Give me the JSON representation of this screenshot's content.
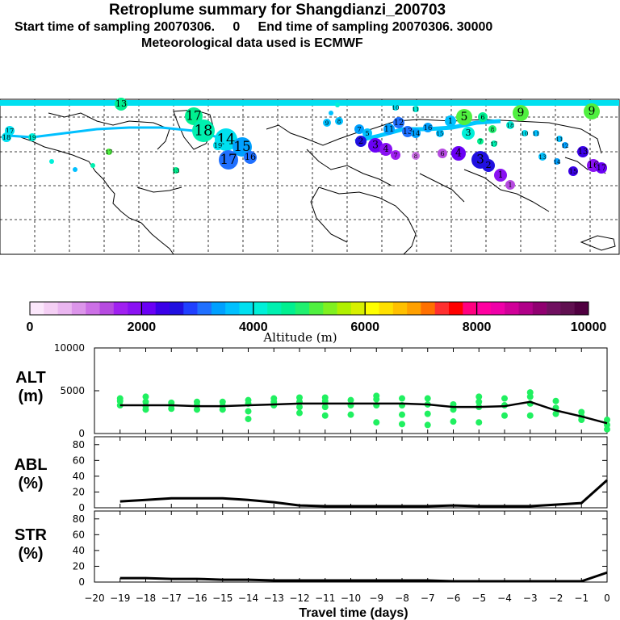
{
  "title": "Retroplume summary for Shangdianzi_200703",
  "subtitle_start": "Start time of sampling 20070306.     0",
  "subtitle_end": "End time of sampling 20070306. 30000",
  "subtitle_met": "Meteorological data used is ECMWF",
  "colorbar": {
    "label": "Altitude (m)",
    "ticks": [
      "0",
      "2000",
      "4000",
      "6000",
      "8000",
      "10000"
    ],
    "colors": [
      "#fbe7fb",
      "#f4cff4",
      "#eab6f0",
      "#dc95ea",
      "#cc70e6",
      "#b64be0",
      "#a020f0",
      "#8a12f2",
      "#6a00f5",
      "#3a00e8",
      "#2010e0",
      "#2040ff",
      "#2070ff",
      "#00a0ff",
      "#00c0ff",
      "#00e0f0",
      "#00f0d8",
      "#00f0b0",
      "#00f090",
      "#20f070",
      "#50f040",
      "#80f020",
      "#b0f000",
      "#d8f000",
      "#ffff00",
      "#ffe000",
      "#ffc000",
      "#ffa000",
      "#ff7000",
      "#ff3030",
      "#ff0000",
      "#ff0080",
      "#ff00a0",
      "#ef00a8",
      "#d00098",
      "#b00088",
      "#900070",
      "#701060",
      "#601050",
      "#500040"
    ]
  },
  "map_labels": [
    "13",
    "14",
    "15",
    "16",
    "17",
    "18",
    "14",
    "15",
    "17",
    "19",
    "16",
    "9",
    "8",
    "7",
    "5",
    "4",
    "3",
    "2",
    "6",
    "10",
    "11",
    "12",
    "13",
    "17",
    "9",
    "8",
    "7",
    "6",
    "5",
    "4",
    "3",
    "2",
    "1",
    "11",
    "12",
    "13",
    "14",
    "15",
    "16",
    "17",
    "18",
    "19"
  ],
  "chart_data": [
    {
      "type": "scatter",
      "panel_label": "ALT\n(m)",
      "ylabel_line1": "ALT",
      "ylabel_line2": "(m)",
      "ylim": [
        0,
        10000
      ],
      "yticks": [
        "10000",
        "5000",
        "0"
      ],
      "x": [
        -19,
        -18,
        -17,
        -16,
        -15,
        -14,
        -13,
        -12,
        -11,
        -10,
        -9,
        -8,
        -7,
        -6,
        -5,
        -4,
        -3,
        -2,
        -1,
        0
      ],
      "line": [
        3300,
        3300,
        3300,
        3200,
        3200,
        3300,
        3400,
        3500,
        3500,
        3500,
        3500,
        3500,
        3400,
        3100,
        3100,
        3200,
        3700,
        2700,
        2000,
        1200
      ],
      "points": [
        {
          "x": -19,
          "y": 3300
        },
        {
          "x": -19,
          "y": 3800
        },
        {
          "x": -19,
          "y": 4100
        },
        {
          "x": -18,
          "y": 2800
        },
        {
          "x": -18,
          "y": 3200
        },
        {
          "x": -18,
          "y": 3700
        },
        {
          "x": -18,
          "y": 4300
        },
        {
          "x": -17,
          "y": 2900
        },
        {
          "x": -17,
          "y": 3300
        },
        {
          "x": -17,
          "y": 3600
        },
        {
          "x": -16,
          "y": 2800
        },
        {
          "x": -16,
          "y": 3300
        },
        {
          "x": -16,
          "y": 3700
        },
        {
          "x": -15,
          "y": 2800
        },
        {
          "x": -15,
          "y": 3200
        },
        {
          "x": -15,
          "y": 3700
        },
        {
          "x": -14,
          "y": 1700
        },
        {
          "x": -14,
          "y": 2600
        },
        {
          "x": -14,
          "y": 3500
        },
        {
          "x": -14,
          "y": 3900
        },
        {
          "x": -13,
          "y": 3300
        },
        {
          "x": -13,
          "y": 3700
        },
        {
          "x": -13,
          "y": 4100
        },
        {
          "x": -12,
          "y": 2400
        },
        {
          "x": -12,
          "y": 3100
        },
        {
          "x": -12,
          "y": 3700
        },
        {
          "x": -12,
          "y": 4200
        },
        {
          "x": -11,
          "y": 2100
        },
        {
          "x": -11,
          "y": 3100
        },
        {
          "x": -11,
          "y": 3800
        },
        {
          "x": -11,
          "y": 4200
        },
        {
          "x": -10,
          "y": 2200
        },
        {
          "x": -10,
          "y": 3300
        },
        {
          "x": -10,
          "y": 3900
        },
        {
          "x": -9,
          "y": 1300
        },
        {
          "x": -9,
          "y": 3300
        },
        {
          "x": -9,
          "y": 4000
        },
        {
          "x": -9,
          "y": 4400
        },
        {
          "x": -8,
          "y": 1100
        },
        {
          "x": -8,
          "y": 2200
        },
        {
          "x": -8,
          "y": 3300
        },
        {
          "x": -8,
          "y": 4100
        },
        {
          "x": -7,
          "y": 1000
        },
        {
          "x": -7,
          "y": 2300
        },
        {
          "x": -7,
          "y": 3400
        },
        {
          "x": -7,
          "y": 4100
        },
        {
          "x": -6,
          "y": 1400
        },
        {
          "x": -6,
          "y": 2800
        },
        {
          "x": -6,
          "y": 3400
        },
        {
          "x": -5,
          "y": 1300
        },
        {
          "x": -5,
          "y": 3100
        },
        {
          "x": -5,
          "y": 3700
        },
        {
          "x": -5,
          "y": 4300
        },
        {
          "x": -4,
          "y": 2100
        },
        {
          "x": -4,
          "y": 3300
        },
        {
          "x": -4,
          "y": 4100
        },
        {
          "x": -3,
          "y": 2100
        },
        {
          "x": -3,
          "y": 3500
        },
        {
          "x": -3,
          "y": 4300
        },
        {
          "x": -3,
          "y": 4800
        },
        {
          "x": -2,
          "y": 2300
        },
        {
          "x": -2,
          "y": 3000
        },
        {
          "x": -2,
          "y": 3800
        },
        {
          "x": -1,
          "y": 1600
        },
        {
          "x": -1,
          "y": 2000
        },
        {
          "x": -1,
          "y": 2500
        },
        {
          "x": 0,
          "y": 500
        },
        {
          "x": 0,
          "y": 1000
        },
        {
          "x": 0,
          "y": 1600
        }
      ]
    },
    {
      "type": "line",
      "ylabel_line1": "ABL",
      "ylabel_line2": "(%)",
      "ylim": [
        0,
        90
      ],
      "yticks": [
        "80",
        "60",
        "40",
        "20",
        "0"
      ],
      "x": [
        -19,
        -18,
        -17,
        -16,
        -15,
        -14,
        -13,
        -12,
        -11,
        -10,
        -9,
        -8,
        -7,
        -6,
        -5,
        -4,
        -3,
        -2,
        -1,
        0
      ],
      "values": [
        8,
        10,
        12,
        12,
        12,
        10,
        7,
        3,
        2,
        2,
        2,
        2,
        2,
        3,
        2,
        2,
        2,
        4,
        6,
        35
      ]
    },
    {
      "type": "line",
      "ylabel_line1": "STR",
      "ylabel_line2": "(%)",
      "ylim": [
        0,
        90
      ],
      "yticks": [
        "80",
        "60",
        "40",
        "20",
        "0"
      ],
      "x": [
        -19,
        -18,
        -17,
        -16,
        -15,
        -14,
        -13,
        -12,
        -11,
        -10,
        -9,
        -8,
        -7,
        -6,
        -5,
        -4,
        -3,
        -2,
        -1,
        0
      ],
      "values": [
        5,
        5,
        4,
        4,
        3,
        3,
        2,
        2,
        2,
        2,
        2,
        2,
        2,
        1,
        1,
        1,
        1,
        1,
        1,
        12
      ]
    }
  ],
  "xaxis": {
    "label": "Travel time (days)",
    "ticks": [
      "-20",
      "-19",
      "-18",
      "-17",
      "-16",
      "-15",
      "-14",
      "-13",
      "-12",
      "-11",
      "-10",
      "-9",
      "-8",
      "-7",
      "-6",
      "-5",
      "-4",
      "-3",
      "-2",
      "-1",
      "0"
    ]
  }
}
